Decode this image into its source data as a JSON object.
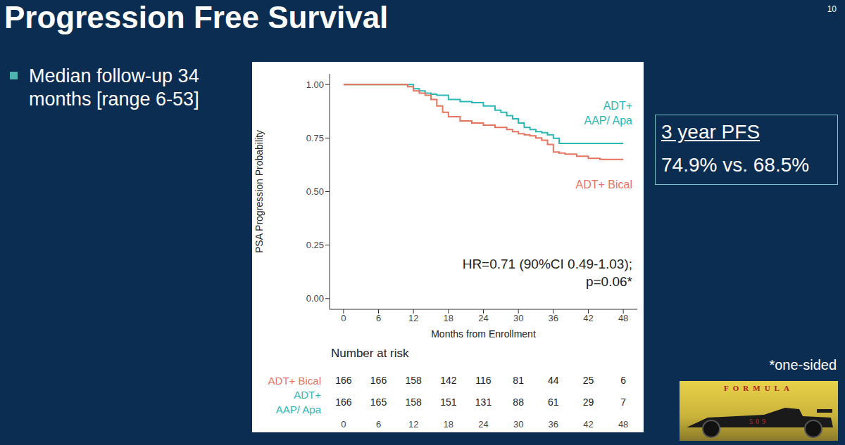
{
  "slide": {
    "title": "Progression Free Survival",
    "page_number": "10",
    "bullets": [
      "Median follow-up 34 months [range 6-53]"
    ],
    "callout": {
      "title": "3 year PFS",
      "text": "74.9% vs. 68.5%"
    },
    "footnote": "*one-sided",
    "logo": {
      "texts": [
        "FORMULA",
        "509"
      ]
    }
  },
  "chart_data": {
    "type": "line",
    "line_style": "step",
    "x_label": "Months from Enrollment",
    "y_label": "PSA Progression Probability",
    "annotations": [
      "HR=0.71 (90%CI 0.49-1.03);",
      "p=0.06*"
    ],
    "x": [
      0,
      6,
      10,
      11,
      12,
      13,
      14,
      15,
      16,
      17,
      18,
      20,
      22,
      24,
      26,
      27,
      28,
      29,
      30,
      31,
      32,
      33,
      34,
      35,
      36,
      37,
      38,
      40,
      42,
      44,
      46,
      48
    ],
    "series": [
      {
        "name": "ADT+ AAP/ Apa",
        "color": "#2bb8b4",
        "values": [
          1,
          1,
          1,
          1,
          0.98,
          0.97,
          0.96,
          0.955,
          0.95,
          0.95,
          0.93,
          0.92,
          0.915,
          0.9,
          0.88,
          0.87,
          0.855,
          0.84,
          0.82,
          0.8,
          0.79,
          0.78,
          0.775,
          0.765,
          0.749,
          0.725,
          0.725,
          0.725,
          0.725,
          0.725,
          0.725,
          0.725
        ]
      },
      {
        "name": "ADT+ Bical",
        "color": "#e8735f",
        "values": [
          1,
          1,
          1,
          0.99,
          0.97,
          0.96,
          0.95,
          0.93,
          0.9,
          0.87,
          0.85,
          0.83,
          0.82,
          0.81,
          0.8,
          0.8,
          0.79,
          0.78,
          0.77,
          0.765,
          0.76,
          0.75,
          0.74,
          0.72,
          0.685,
          0.68,
          0.675,
          0.665,
          0.655,
          0.65,
          0.65,
          0.65
        ]
      }
    ],
    "xlim": [
      -2.4,
      50.4
    ],
    "xticks": [
      0,
      6,
      12,
      18,
      24,
      30,
      36,
      42,
      48
    ],
    "ylim": [
      -0.05,
      1.05
    ],
    "yticks": [
      {
        "value": 0,
        "label": "0.00"
      },
      {
        "value": 0.25,
        "label": "0.25"
      },
      {
        "value": 0.5,
        "label": "0.50"
      },
      {
        "value": 0.75,
        "label": "0.75"
      },
      {
        "value": 1,
        "label": "1.00"
      }
    ],
    "grid": false,
    "number_at_risk": {
      "title": "Number at risk",
      "times": [
        0,
        6,
        12,
        18,
        24,
        30,
        36,
        42,
        48
      ],
      "rows": [
        {
          "name": "ADT+ Bical",
          "color": "#e8735f",
          "values": [
            166,
            166,
            158,
            142,
            116,
            81,
            44,
            25,
            6
          ]
        },
        {
          "name": "ADT+ AAP/ Apa",
          "color": "#2bb8b4",
          "values": [
            166,
            165,
            158,
            151,
            131,
            88,
            61,
            29,
            7
          ]
        }
      ]
    }
  }
}
